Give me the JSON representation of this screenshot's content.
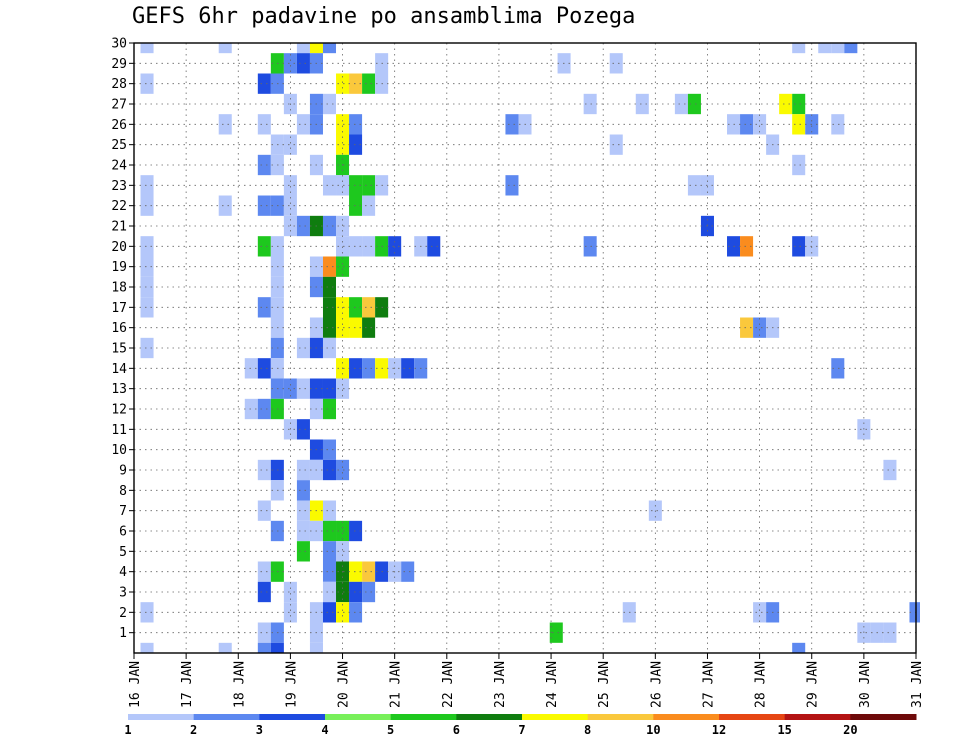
{
  "chart_data": {
    "type": "heatmap",
    "title": "GEFS 6hr padavine po ansamblima Pozega",
    "xlabel": "",
    "ylabel": "",
    "x_ticks": [
      "16 JAN",
      "17 JAN",
      "18 JAN",
      "19 JAN",
      "20 JAN",
      "21 JAN",
      "22 JAN",
      "23 JAN",
      "24 JAN",
      "25 JAN",
      "26 JAN",
      "27 JAN",
      "28 JAN",
      "29 JAN",
      "30 JAN",
      "31 JAN"
    ],
    "y_ticks": [
      "1",
      "2",
      "3",
      "4",
      "5",
      "6",
      "7",
      "8",
      "9",
      "10",
      "11",
      "12",
      "13",
      "14",
      "15",
      "16",
      "17",
      "18",
      "19",
      "20",
      "21",
      "22",
      "23",
      "24",
      "25",
      "26",
      "27",
      "28",
      "29",
      "30"
    ],
    "ylim": [
      0,
      30
    ],
    "xlim_days": [
      0,
      15
    ],
    "grid": true,
    "colorbar": {
      "labels": [
        "1",
        "2",
        "3",
        "4",
        "5",
        "6",
        "7",
        "8",
        "10",
        "12",
        "15",
        "20"
      ],
      "colors": [
        "#b4c7fa",
        "#5d88f0",
        "#1e4be0",
        "#78f05a",
        "#1ec81e",
        "#0f7d0f",
        "#fafa00",
        "#fac83c",
        "#fa8c1e",
        "#e64614",
        "#b41414",
        "#6e0a0a"
      ]
    },
    "cells": [
      [
        30,
        0.25,
        1
      ],
      [
        30,
        1.75,
        1
      ],
      [
        30,
        3.25,
        1
      ],
      [
        30,
        3.5,
        7
      ],
      [
        30,
        3.75,
        2
      ],
      [
        30,
        12.75,
        1
      ],
      [
        30,
        13.25,
        1
      ],
      [
        30,
        13.5,
        1
      ],
      [
        30,
        13.75,
        2
      ],
      [
        29,
        2.75,
        5
      ],
      [
        29,
        3,
        2
      ],
      [
        29,
        3.25,
        3
      ],
      [
        29,
        3.5,
        2
      ],
      [
        29,
        4.75,
        1
      ],
      [
        29,
        8.25,
        1
      ],
      [
        29,
        9.25,
        1
      ],
      [
        28,
        0.25,
        1
      ],
      [
        28,
        2.5,
        3
      ],
      [
        28,
        2.75,
        2
      ],
      [
        28,
        4,
        7
      ],
      [
        28,
        4.25,
        8
      ],
      [
        28,
        4.5,
        5
      ],
      [
        28,
        4.75,
        1
      ],
      [
        27,
        3,
        1
      ],
      [
        27,
        3.5,
        2
      ],
      [
        27,
        3.75,
        1
      ],
      [
        27,
        8.75,
        1
      ],
      [
        27,
        9.75,
        1
      ],
      [
        27,
        10.5,
        1
      ],
      [
        27,
        10.75,
        5
      ],
      [
        27,
        12.5,
        7
      ],
      [
        27,
        12.75,
        5
      ],
      [
        26,
        1.75,
        1
      ],
      [
        26,
        2.5,
        1
      ],
      [
        26,
        3.25,
        1
      ],
      [
        26,
        3.5,
        2
      ],
      [
        26,
        4,
        7
      ],
      [
        26,
        4.25,
        2
      ],
      [
        26,
        7.25,
        2
      ],
      [
        26,
        7.5,
        1
      ],
      [
        26,
        11.5,
        1
      ],
      [
        26,
        11.75,
        2
      ],
      [
        26,
        12,
        1
      ],
      [
        26,
        12.75,
        7
      ],
      [
        26,
        13,
        2
      ],
      [
        26,
        13.5,
        1
      ],
      [
        25,
        2.75,
        1
      ],
      [
        25,
        3,
        1
      ],
      [
        25,
        4,
        7
      ],
      [
        25,
        4.25,
        3
      ],
      [
        25,
        9.25,
        1
      ],
      [
        25,
        12.25,
        1
      ],
      [
        24,
        2.5,
        2
      ],
      [
        24,
        2.75,
        1
      ],
      [
        24,
        3.5,
        1
      ],
      [
        24,
        4,
        5
      ],
      [
        24,
        12.75,
        1
      ],
      [
        23,
        0.25,
        1
      ],
      [
        23,
        3,
        1
      ],
      [
        23,
        3.75,
        1
      ],
      [
        23,
        4,
        1
      ],
      [
        23,
        4.25,
        5
      ],
      [
        23,
        4.5,
        5
      ],
      [
        23,
        4.75,
        1
      ],
      [
        23,
        7.25,
        2
      ],
      [
        23,
        10.75,
        1
      ],
      [
        23,
        11,
        1
      ],
      [
        22,
        0.25,
        1
      ],
      [
        22,
        1.75,
        1
      ],
      [
        22,
        2.5,
        2
      ],
      [
        22,
        2.75,
        2
      ],
      [
        22,
        3,
        1
      ],
      [
        22,
        4.25,
        5
      ],
      [
        22,
        4.5,
        1
      ],
      [
        21,
        3,
        1
      ],
      [
        21,
        3.25,
        2
      ],
      [
        21,
        3.5,
        6
      ],
      [
        21,
        3.75,
        2
      ],
      [
        21,
        4,
        1
      ],
      [
        21,
        11,
        3
      ],
      [
        20,
        0.25,
        1
      ],
      [
        20,
        2.5,
        5
      ],
      [
        20,
        2.75,
        1
      ],
      [
        20,
        4,
        1
      ],
      [
        20,
        4.25,
        1
      ],
      [
        20,
        4.5,
        1
      ],
      [
        20,
        4.75,
        5
      ],
      [
        20,
        5,
        3
      ],
      [
        20,
        5.5,
        1
      ],
      [
        20,
        5.75,
        3
      ],
      [
        20,
        8.75,
        2
      ],
      [
        20,
        11.5,
        3
      ],
      [
        20,
        11.75,
        9
      ],
      [
        20,
        12.75,
        3
      ],
      [
        20,
        13,
        1
      ],
      [
        19,
        0.25,
        1
      ],
      [
        19,
        2.75,
        1
      ],
      [
        19,
        3.5,
        1
      ],
      [
        19,
        3.75,
        9
      ],
      [
        19,
        4,
        5
      ],
      [
        18,
        0.25,
        1
      ],
      [
        18,
        2.75,
        1
      ],
      [
        18,
        3.5,
        2
      ],
      [
        18,
        3.75,
        6
      ],
      [
        17,
        0.25,
        1
      ],
      [
        17,
        2.5,
        2
      ],
      [
        17,
        2.75,
        1
      ],
      [
        17,
        3.75,
        6
      ],
      [
        17,
        4,
        7
      ],
      [
        17,
        4.25,
        5
      ],
      [
        17,
        4.5,
        8
      ],
      [
        17,
        4.75,
        6
      ],
      [
        16,
        2.75,
        1
      ],
      [
        16,
        3.5,
        1
      ],
      [
        16,
        3.75,
        6
      ],
      [
        16,
        4,
        7
      ],
      [
        16,
        4.25,
        7
      ],
      [
        16,
        4.5,
        6
      ],
      [
        16,
        11.75,
        8
      ],
      [
        16,
        12,
        2
      ],
      [
        16,
        12.25,
        1
      ],
      [
        15,
        0.25,
        1
      ],
      [
        15,
        2.75,
        2
      ],
      [
        15,
        3.25,
        1
      ],
      [
        15,
        3.5,
        3
      ],
      [
        15,
        3.75,
        1
      ],
      [
        14,
        2.25,
        1
      ],
      [
        14,
        2.5,
        3
      ],
      [
        14,
        2.75,
        1
      ],
      [
        14,
        4,
        7
      ],
      [
        14,
        4.25,
        3
      ],
      [
        14,
        4.5,
        2
      ],
      [
        14,
        4.75,
        7
      ],
      [
        14,
        5,
        1
      ],
      [
        14,
        5.25,
        3
      ],
      [
        14,
        5.5,
        2
      ],
      [
        14,
        13.5,
        2
      ],
      [
        13,
        2.75,
        2
      ],
      [
        13,
        3,
        2
      ],
      [
        13,
        3.25,
        1
      ],
      [
        13,
        3.5,
        3
      ],
      [
        13,
        3.75,
        3
      ],
      [
        13,
        4,
        1
      ],
      [
        12,
        2.25,
        1
      ],
      [
        12,
        2.5,
        2
      ],
      [
        12,
        2.75,
        5
      ],
      [
        12,
        3.5,
        1
      ],
      [
        12,
        3.75,
        5
      ],
      [
        11,
        3,
        1
      ],
      [
        11,
        3.25,
        3
      ],
      [
        11,
        14,
        1
      ],
      [
        10,
        3.5,
        3
      ],
      [
        10,
        3.75,
        2
      ],
      [
        9,
        2.5,
        1
      ],
      [
        9,
        2.75,
        3
      ],
      [
        9,
        3.25,
        1
      ],
      [
        9,
        3.5,
        1
      ],
      [
        9,
        3.75,
        3
      ],
      [
        9,
        4,
        2
      ],
      [
        9,
        14.5,
        1
      ],
      [
        8,
        2.75,
        1
      ],
      [
        8,
        3.25,
        2
      ],
      [
        7,
        2.5,
        1
      ],
      [
        7,
        3.25,
        1
      ],
      [
        7,
        3.5,
        7
      ],
      [
        7,
        3.75,
        1
      ],
      [
        7,
        10,
        1
      ],
      [
        6,
        2.75,
        2
      ],
      [
        6,
        3.25,
        1
      ],
      [
        6,
        3.5,
        1
      ],
      [
        6,
        3.75,
        5
      ],
      [
        6,
        4,
        5
      ],
      [
        6,
        4.25,
        3
      ],
      [
        5,
        3.25,
        5
      ],
      [
        5,
        3.75,
        2
      ],
      [
        5,
        4,
        1
      ],
      [
        4,
        2.5,
        1
      ],
      [
        4,
        2.75,
        5
      ],
      [
        4,
        3.75,
        2
      ],
      [
        4,
        4,
        6
      ],
      [
        4,
        4.25,
        7
      ],
      [
        4,
        4.5,
        8
      ],
      [
        4,
        4.75,
        3
      ],
      [
        4,
        5,
        1
      ],
      [
        4,
        5.25,
        2
      ],
      [
        3,
        2.5,
        3
      ],
      [
        3,
        3,
        1
      ],
      [
        3,
        3.75,
        1
      ],
      [
        3,
        4,
        6
      ],
      [
        3,
        4.25,
        3
      ],
      [
        3,
        4.5,
        2
      ],
      [
        2,
        0.25,
        1
      ],
      [
        2,
        3,
        1
      ],
      [
        2,
        3.5,
        1
      ],
      [
        2,
        3.75,
        3
      ],
      [
        2,
        4,
        7
      ],
      [
        2,
        4.25,
        2
      ],
      [
        2,
        9.5,
        1
      ],
      [
        2,
        12,
        1
      ],
      [
        2,
        12.25,
        2
      ],
      [
        2,
        15,
        2
      ],
      [
        1,
        2.5,
        1
      ],
      [
        1,
        2.75,
        2
      ],
      [
        1,
        3.5,
        1
      ],
      [
        1,
        8.1,
        5
      ],
      [
        1,
        14,
        1
      ],
      [
        1,
        14.25,
        1
      ],
      [
        1,
        14.5,
        1
      ],
      [
        0,
        0.25,
        1
      ],
      [
        0,
        1.75,
        1
      ],
      [
        0,
        2.5,
        2
      ],
      [
        0,
        2.75,
        3
      ],
      [
        0,
        3.5,
        1
      ],
      [
        0,
        12.75,
        2
      ]
    ]
  }
}
